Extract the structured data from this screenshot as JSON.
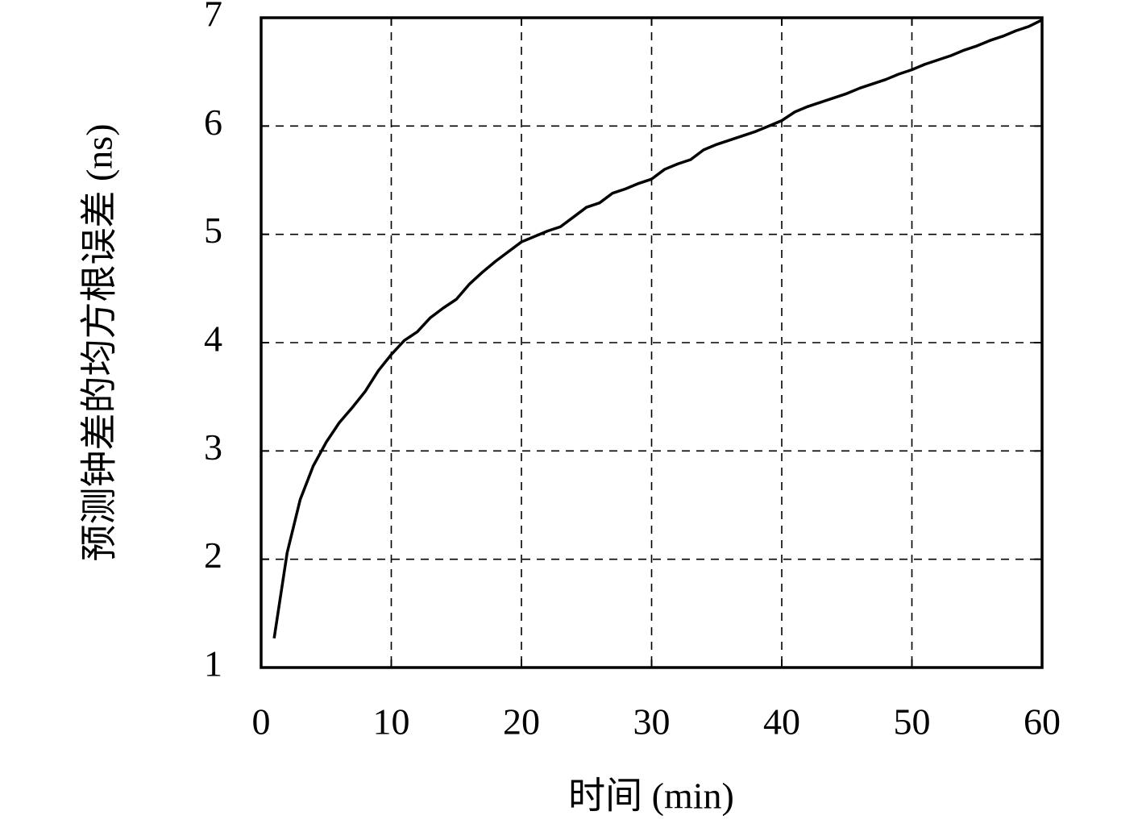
{
  "chart_data": {
    "type": "line",
    "xlabel": "时间 (min)",
    "ylabel": "预测钟差的均方根误差 (ns)",
    "x": [
      1,
      2,
      3,
      4,
      5,
      6,
      7,
      8,
      9,
      10,
      11,
      12,
      13,
      14,
      15,
      16,
      17,
      18,
      19,
      20,
      21,
      22,
      23,
      24,
      25,
      26,
      27,
      28,
      29,
      30,
      31,
      32,
      33,
      34,
      35,
      36,
      37,
      38,
      39,
      40,
      41,
      42,
      43,
      44,
      45,
      46,
      47,
      48,
      49,
      50,
      51,
      52,
      53,
      54,
      55,
      56,
      57,
      58,
      59,
      60
    ],
    "series": [
      {
        "color": "#000000",
        "values": [
          1.27,
          2.06,
          2.55,
          2.86,
          3.08,
          3.26,
          3.4,
          3.55,
          3.74,
          3.89,
          4.02,
          4.1,
          4.23,
          4.32,
          4.4,
          4.54,
          4.65,
          4.75,
          4.84,
          4.93,
          4.98,
          5.03,
          5.07,
          5.16,
          5.25,
          5.29,
          5.38,
          5.42,
          5.47,
          5.51,
          5.6,
          5.65,
          5.69,
          5.78,
          5.83,
          5.87,
          5.91,
          5.95,
          6.0,
          6.05,
          6.13,
          6.18,
          6.22,
          6.26,
          6.3,
          6.35,
          6.39,
          6.43,
          6.48,
          6.52,
          6.57,
          6.61,
          6.65,
          6.7,
          6.74,
          6.79,
          6.83,
          6.88,
          6.92,
          6.98
        ]
      }
    ],
    "xlim": [
      0,
      60
    ],
    "xticks": [
      0,
      10,
      20,
      30,
      40,
      50,
      60
    ],
    "ylim": [
      1,
      7
    ],
    "yticks": [
      1,
      2,
      3,
      4,
      5,
      6,
      7
    ],
    "grid": true
  }
}
